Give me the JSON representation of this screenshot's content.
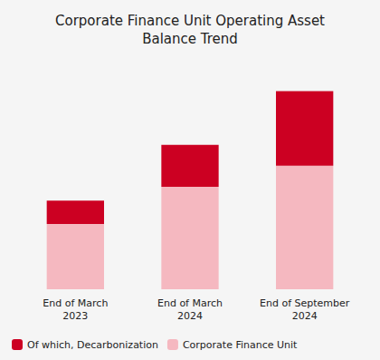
{
  "chart_data": {
    "type": "bar",
    "title": "Corporate Finance Unit Operating Asset\nBalance Trend",
    "categories": [
      "End of March\n2023",
      "End of March\n2024",
      "End of September\n2024"
    ],
    "series": [
      {
        "name": "Of which, Decarbonization",
        "color": "#cc0022",
        "values": [
          0.1,
          0.18,
          0.32
        ]
      },
      {
        "name": "Corporate Finance Unit",
        "color": "#f5b8c0",
        "values": [
          0.28,
          0.44,
          0.53
        ]
      }
    ],
    "stacked": true,
    "ylim": [
      0,
      1.0
    ],
    "grid": false,
    "tick_labels": "x",
    "legend": "lower left"
  }
}
